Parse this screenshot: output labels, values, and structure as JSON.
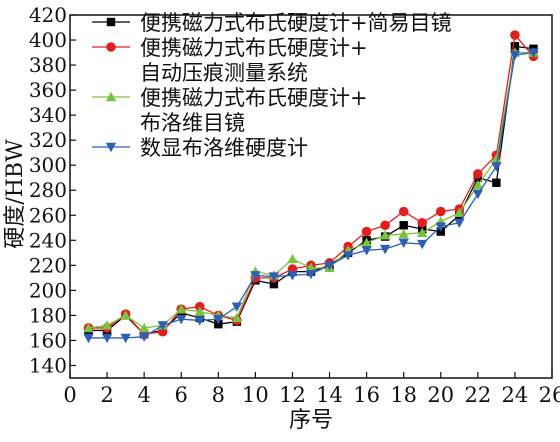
{
  "chart_data": {
    "type": "line",
    "title": "",
    "xlabel": "序号",
    "ylabel": "硬度/HBW",
    "xlim": [
      0,
      26
    ],
    "ylim": [
      130,
      420
    ],
    "xticks": [
      0,
      2,
      4,
      6,
      8,
      10,
      12,
      14,
      16,
      18,
      20,
      22,
      24,
      26
    ],
    "yticks": [
      140,
      160,
      180,
      200,
      220,
      240,
      260,
      280,
      300,
      320,
      340,
      360,
      380,
      400,
      420
    ],
    "grid": false,
    "legend_position": "top-left",
    "x": [
      1,
      2,
      3,
      4,
      5,
      6,
      7,
      8,
      9,
      10,
      11,
      12,
      13,
      14,
      15,
      16,
      17,
      18,
      19,
      20,
      21,
      22,
      23,
      24,
      25
    ],
    "series": [
      {
        "name": "便携磁力式布氏硬度计+简易目镜",
        "marker": "square",
        "color": "#000000",
        "legend_lines": [
          "便携磁力式布氏硬度计+简易目镜"
        ],
        "values": [
          168,
          168,
          180,
          165,
          168,
          182,
          178,
          173,
          175,
          208,
          205,
          215,
          215,
          220,
          230,
          240,
          243,
          252,
          249,
          247,
          260,
          290,
          286,
          395,
          393
        ]
      },
      {
        "name": "便携磁力式布氏硬度计+自动压痕测量系统",
        "marker": "circle",
        "color": "#e02020",
        "legend_lines": [
          "便携磁力式布氏硬度计+",
          "自动压痕测量系统"
        ],
        "values": [
          170,
          170,
          181,
          165,
          167,
          185,
          187,
          180,
          176,
          210,
          210,
          217,
          220,
          222,
          235,
          247,
          252,
          263,
          254,
          263,
          265,
          293,
          308,
          404,
          387
        ]
      },
      {
        "name": "便携磁力式布氏硬度计+布洛维目镜",
        "marker": "triangle-up",
        "color": "#7cc242",
        "legend_lines": [
          "便携磁力式布氏硬度计+",
          "布洛维目镜"
        ],
        "values": [
          170,
          172,
          180,
          170,
          172,
          185,
          183,
          180,
          178,
          215,
          212,
          225,
          218,
          218,
          232,
          238,
          244,
          245,
          246,
          255,
          262,
          284,
          305,
          390,
          390
        ]
      },
      {
        "name": "数显布洛维硬度计",
        "marker": "triangle-down",
        "color": "#2f5fb3",
        "legend_lines": [
          "数显布洛维硬度计"
        ],
        "values": [
          162,
          162,
          162,
          163,
          172,
          177,
          176,
          177,
          187,
          212,
          211,
          212,
          213,
          220,
          228,
          232,
          233,
          238,
          237,
          251,
          254,
          277,
          299,
          388,
          390
        ]
      }
    ]
  }
}
